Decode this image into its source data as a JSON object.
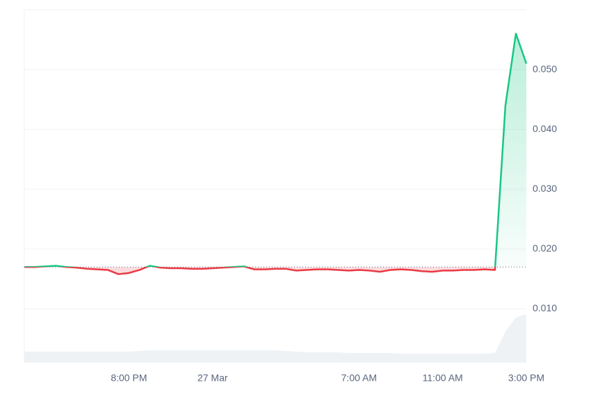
{
  "chart_data": {
    "type": "line",
    "categories": [
      null,
      null,
      null,
      null,
      null,
      null,
      null,
      null,
      null,
      null,
      "8:00 PM",
      null,
      null,
      null,
      null,
      null,
      null,
      null,
      "27 Mar",
      null,
      null,
      null,
      null,
      null,
      null,
      null,
      null,
      null,
      null,
      null,
      null,
      null,
      "7:00 AM",
      null,
      null,
      null,
      null,
      null,
      null,
      null,
      "11:00 AM",
      null,
      null,
      null,
      null,
      null,
      null,
      null,
      "3:00 PM"
    ],
    "values": [
      0.017,
      0.017,
      0.0171,
      0.0172,
      0.017,
      0.0169,
      0.0167,
      0.0166,
      0.0165,
      0.0158,
      0.016,
      0.0165,
      0.0172,
      0.0169,
      0.0168,
      0.0168,
      0.0167,
      0.0167,
      0.0168,
      0.0169,
      0.017,
      0.0171,
      0.0166,
      0.0166,
      0.0167,
      0.0167,
      0.0164,
      0.0165,
      0.0166,
      0.0166,
      0.0165,
      0.0164,
      0.0165,
      0.0164,
      0.0162,
      0.0165,
      0.0166,
      0.0165,
      0.0163,
      0.0162,
      0.0164,
      0.0164,
      0.0165,
      0.0165,
      0.0166,
      0.0165,
      0.044,
      0.056,
      0.051
    ],
    "volume": [
      1.6,
      1.6,
      1.6,
      1.6,
      1.6,
      1.6,
      1.6,
      1.6,
      1.6,
      1.6,
      1.6,
      1.7,
      1.8,
      1.8,
      1.8,
      1.8,
      1.8,
      1.8,
      1.8,
      1.8,
      1.8,
      1.8,
      1.8,
      1.8,
      1.8,
      1.7,
      1.6,
      1.5,
      1.5,
      1.5,
      1.5,
      1.4,
      1.4,
      1.4,
      1.4,
      1.4,
      1.3,
      1.3,
      1.3,
      1.3,
      1.3,
      1.3,
      1.3,
      1.3,
      1.3,
      1.4,
      4.5,
      6.5,
      7.0
    ],
    "up_color": "#16c784",
    "down_color": "#ea3943",
    "volume_color": "#eff2f5",
    "ylim": [
      0.001,
      0.06
    ],
    "yticks": [
      {
        "value": 0.01,
        "label": "0.010"
      },
      {
        "value": 0.02,
        "label": "0.020"
      },
      {
        "value": 0.03,
        "label": "0.030"
      },
      {
        "value": 0.04,
        "label": "0.040"
      },
      {
        "value": 0.05,
        "label": "0.050"
      }
    ],
    "grid": true
  }
}
